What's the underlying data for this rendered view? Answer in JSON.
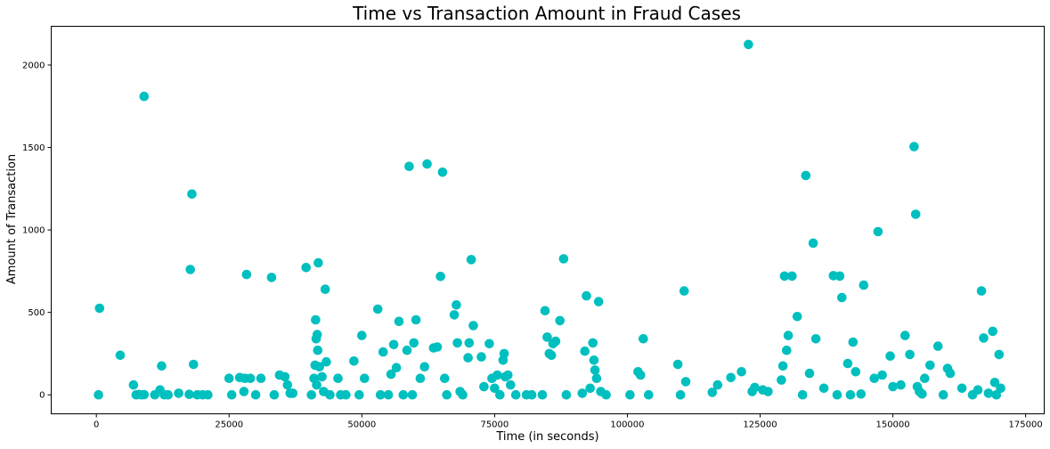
{
  "chart_data": {
    "type": "scatter",
    "title": "Time vs Transaction Amount in Fraud Cases",
    "xlabel": "Time (in seconds)",
    "ylabel": "Amount of Transaction",
    "xlim": [
      -8500,
      178500
    ],
    "ylim": [
      -115,
      2235
    ],
    "xticks": [
      0,
      25000,
      50000,
      75000,
      100000,
      125000,
      150000,
      175000
    ],
    "yticks": [
      0,
      500,
      1000,
      1500,
      2000
    ],
    "grid": false,
    "legend": "none",
    "marker_color": "#00bfbf",
    "points": [
      [
        400,
        0
      ],
      [
        600,
        525
      ],
      [
        4500,
        240
      ],
      [
        7000,
        60
      ],
      [
        7500,
        0
      ],
      [
        8000,
        2
      ],
      [
        8500,
        0
      ],
      [
        9000,
        1810
      ],
      [
        9000,
        1
      ],
      [
        11000,
        0
      ],
      [
        12000,
        30
      ],
      [
        12300,
        175
      ],
      [
        12800,
        0
      ],
      [
        13500,
        0
      ],
      [
        15500,
        10
      ],
      [
        17500,
        3
      ],
      [
        17700,
        760
      ],
      [
        18000,
        1218
      ],
      [
        18300,
        185
      ],
      [
        19000,
        0
      ],
      [
        20000,
        0
      ],
      [
        21000,
        0
      ],
      [
        25000,
        100
      ],
      [
        25500,
        0
      ],
      [
        27000,
        105
      ],
      [
        27800,
        20
      ],
      [
        28000,
        100
      ],
      [
        28300,
        730
      ],
      [
        29000,
        100
      ],
      [
        30000,
        0
      ],
      [
        31000,
        100
      ],
      [
        33000,
        712
      ],
      [
        33500,
        0
      ],
      [
        34500,
        120
      ],
      [
        35500,
        110
      ],
      [
        36000,
        60
      ],
      [
        36500,
        10
      ],
      [
        37000,
        10
      ],
      [
        39500,
        772
      ],
      [
        40500,
        0
      ],
      [
        41000,
        100
      ],
      [
        41200,
        180
      ],
      [
        41300,
        455
      ],
      [
        41400,
        340
      ],
      [
        41500,
        60
      ],
      [
        41600,
        365
      ],
      [
        41700,
        270
      ],
      [
        41800,
        800
      ],
      [
        42000,
        170
      ],
      [
        42500,
        110
      ],
      [
        42800,
        20
      ],
      [
        43100,
        640
      ],
      [
        43300,
        200
      ],
      [
        44000,
        0
      ],
      [
        45500,
        100
      ],
      [
        46000,
        0
      ],
      [
        47000,
        0
      ],
      [
        48500,
        205
      ],
      [
        49500,
        0
      ],
      [
        50000,
        360
      ],
      [
        50500,
        100
      ],
      [
        53000,
        520
      ],
      [
        53500,
        0
      ],
      [
        54000,
        260
      ],
      [
        55000,
        0
      ],
      [
        55500,
        125
      ],
      [
        56000,
        305
      ],
      [
        56500,
        165
      ],
      [
        57000,
        445
      ],
      [
        57800,
        0
      ],
      [
        58500,
        270
      ],
      [
        58900,
        1385
      ],
      [
        59500,
        0
      ],
      [
        59800,
        315
      ],
      [
        60200,
        455
      ],
      [
        61000,
        100
      ],
      [
        61800,
        170
      ],
      [
        62300,
        1400
      ],
      [
        63500,
        285
      ],
      [
        64200,
        290
      ],
      [
        64800,
        718
      ],
      [
        65200,
        1350
      ],
      [
        65600,
        100
      ],
      [
        66000,
        0
      ],
      [
        67400,
        485
      ],
      [
        67800,
        545
      ],
      [
        68000,
        315
      ],
      [
        68500,
        20
      ],
      [
        69000,
        0
      ],
      [
        70000,
        225
      ],
      [
        70200,
        315
      ],
      [
        70600,
        820
      ],
      [
        71000,
        420
      ],
      [
        72500,
        230
      ],
      [
        73000,
        50
      ],
      [
        74000,
        310
      ],
      [
        74500,
        100
      ],
      [
        75000,
        40
      ],
      [
        75500,
        120
      ],
      [
        76000,
        0
      ],
      [
        76600,
        210
      ],
      [
        76800,
        250
      ],
      [
        77000,
        110
      ],
      [
        77500,
        120
      ],
      [
        78000,
        60
      ],
      [
        79000,
        0
      ],
      [
        81000,
        0
      ],
      [
        82000,
        0
      ],
      [
        84000,
        0
      ],
      [
        84500,
        510
      ],
      [
        84900,
        350
      ],
      [
        85300,
        250
      ],
      [
        85700,
        240
      ],
      [
        86000,
        310
      ],
      [
        86500,
        325
      ],
      [
        87300,
        450
      ],
      [
        88000,
        825
      ],
      [
        88500,
        0
      ],
      [
        91500,
        10
      ],
      [
        92000,
        265
      ],
      [
        92300,
        600
      ],
      [
        93000,
        40
      ],
      [
        93500,
        315
      ],
      [
        93700,
        210
      ],
      [
        93900,
        150
      ],
      [
        94200,
        100
      ],
      [
        94600,
        565
      ],
      [
        95000,
        20
      ],
      [
        96000,
        0
      ],
      [
        100500,
        0
      ],
      [
        102000,
        140
      ],
      [
        102500,
        120
      ],
      [
        103000,
        340
      ],
      [
        104000,
        0
      ],
      [
        109500,
        185
      ],
      [
        110000,
        0
      ],
      [
        110700,
        630
      ],
      [
        111000,
        80
      ],
      [
        116000,
        15
      ],
      [
        117000,
        60
      ],
      [
        119500,
        105
      ],
      [
        121500,
        140
      ],
      [
        122800,
        2125
      ],
      [
        123500,
        20
      ],
      [
        124000,
        45
      ],
      [
        125500,
        30
      ],
      [
        126500,
        20
      ],
      [
        129000,
        90
      ],
      [
        129300,
        175
      ],
      [
        129600,
        720
      ],
      [
        130000,
        270
      ],
      [
        130300,
        360
      ],
      [
        131000,
        720
      ],
      [
        132000,
        475
      ],
      [
        133000,
        0
      ],
      [
        133600,
        1330
      ],
      [
        134300,
        130
      ],
      [
        135000,
        920
      ],
      [
        135500,
        340
      ],
      [
        137000,
        40
      ],
      [
        138800,
        723
      ],
      [
        139500,
        0
      ],
      [
        140000,
        720
      ],
      [
        140400,
        590
      ],
      [
        141500,
        190
      ],
      [
        142000,
        0
      ],
      [
        142500,
        320
      ],
      [
        143000,
        140
      ],
      [
        144000,
        5
      ],
      [
        144500,
        665
      ],
      [
        146500,
        100
      ],
      [
        147200,
        990
      ],
      [
        148000,
        120
      ],
      [
        149500,
        235
      ],
      [
        150000,
        50
      ],
      [
        151500,
        60
      ],
      [
        152300,
        360
      ],
      [
        153200,
        245
      ],
      [
        154000,
        1505
      ],
      [
        154300,
        1095
      ],
      [
        154600,
        50
      ],
      [
        155000,
        20
      ],
      [
        155500,
        5
      ],
      [
        156000,
        100
      ],
      [
        157000,
        180
      ],
      [
        158500,
        295
      ],
      [
        159500,
        0
      ],
      [
        160300,
        160
      ],
      [
        160800,
        130
      ],
      [
        163000,
        40
      ],
      [
        165000,
        0
      ],
      [
        166000,
        30
      ],
      [
        166700,
        630
      ],
      [
        167100,
        345
      ],
      [
        168000,
        10
      ],
      [
        168800,
        385
      ],
      [
        169200,
        75
      ],
      [
        169500,
        0
      ],
      [
        170000,
        245
      ],
      [
        170300,
        40
      ]
    ]
  }
}
